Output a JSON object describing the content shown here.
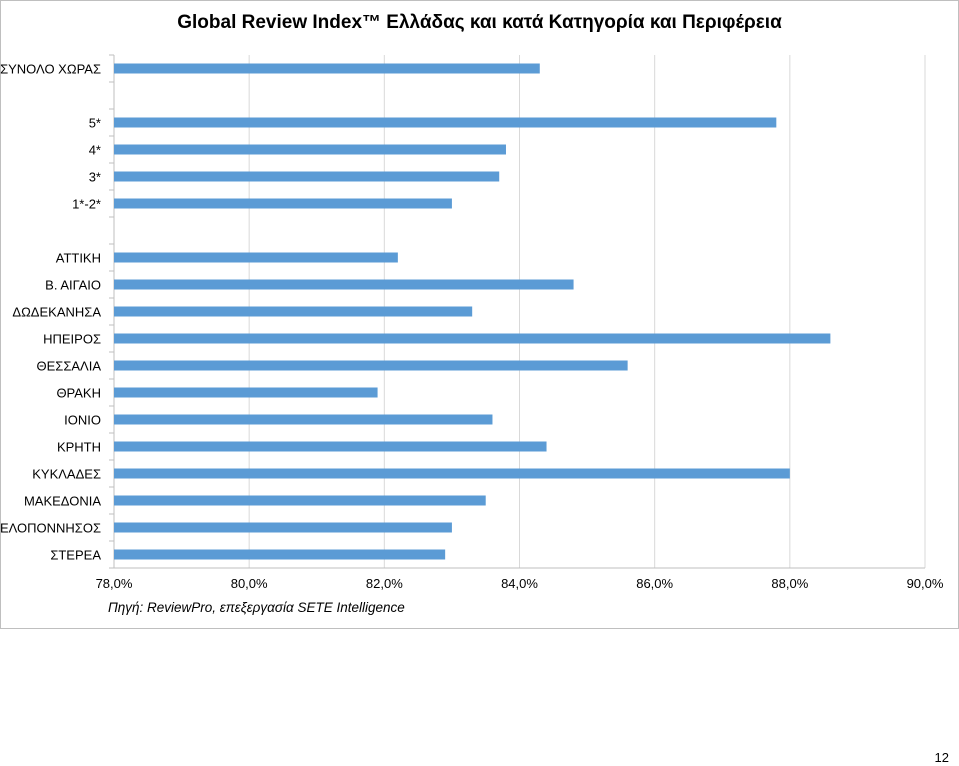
{
  "page_number": "12",
  "chart_data": {
    "type": "bar",
    "orientation": "horizontal",
    "title": "Global Review Index™ Ελλάδας και κατά Κατηγορία και Περιφέρεια",
    "source": "Πηγή: ReviewPro, επεξεργασία SETE Intelligence",
    "categories": [
      "ΣΥΝΟΛΟ ΧΩΡΑΣ",
      "",
      "5*",
      "4*",
      "3*",
      "1*-2*",
      "",
      "ΑΤΤΙΚΗ",
      "Β. ΑΙΓΑΙΟ",
      "ΔΩΔΕΚΑΝΗΣΑ",
      "ΗΠΕΙΡΟΣ",
      "ΘΕΣΣΑΛΙΑ",
      "ΘΡΑΚΗ",
      "ΙΟΝΙΟ",
      "ΚΡΗΤΗ",
      "ΚΥΚΛΑΔΕΣ",
      "ΜΑΚΕΔΟΝΙΑ",
      "ΠΕΛΟΠΟΝΝΗΣΟΣ",
      "ΣΤΕΡΕΑ"
    ],
    "values": [
      84.3,
      null,
      87.8,
      83.8,
      83.7,
      83.0,
      null,
      82.2,
      84.8,
      83.3,
      88.6,
      85.6,
      81.9,
      83.6,
      84.4,
      88.0,
      83.5,
      83.0,
      82.9
    ],
    "xlim": [
      78,
      90
    ],
    "xticks": [
      "78,0%",
      "80,0%",
      "82,0%",
      "84,0%",
      "86,0%",
      "88,0%",
      "90,0%"
    ],
    "xtick_values": [
      78,
      80,
      82,
      84,
      86,
      88,
      90
    ],
    "bar_color": "#5b9bd5",
    "grid": true
  }
}
